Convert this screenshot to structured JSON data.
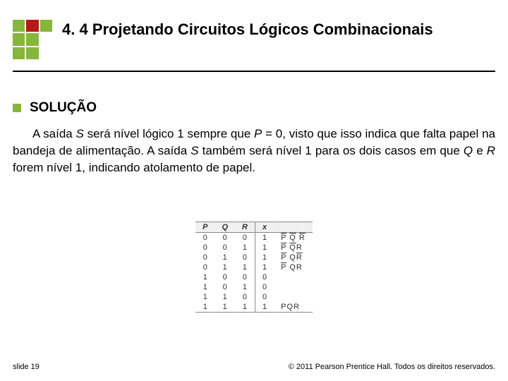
{
  "logo": {
    "cells": [
      "#86b63b",
      "#b51a1a",
      "#86b63b",
      "#86b63b",
      "#86b63b",
      "#ffffff",
      "#86b63b",
      "#86b63b",
      "#ffffff"
    ]
  },
  "title": "4. 4 Projetando Circuitos Lógicos Combinacionais",
  "section": {
    "heading": "SOLUÇÃO"
  },
  "paragraph": {
    "p1a": "A saída ",
    "S1": "S",
    "p1b": " será nível lógico 1 sempre que ",
    "P": "P",
    "p1c": " = 0, visto que isso indica que falta papel na bandeja de alimentação. A saída ",
    "S2": "S",
    "p1d": " também será nível 1 para os dois casos em que ",
    "Q": "Q",
    "p1e": " e ",
    "R": "R",
    "p1f": " forem nível 1, indicando atolamento de papel."
  },
  "table": {
    "headers": [
      "P",
      "Q",
      "R",
      "x",
      ""
    ],
    "rows": [
      {
        "p": "0",
        "q": "0",
        "r": "0",
        "x": "1",
        "expr": [
          {
            "t": "P",
            "bar": true
          },
          {
            "t": " "
          },
          {
            "t": "Q",
            "bar": true
          },
          {
            "t": " "
          },
          {
            "t": "R",
            "bar": true
          }
        ]
      },
      {
        "p": "0",
        "q": "0",
        "r": "1",
        "x": "1",
        "expr": [
          {
            "t": "P",
            "bar": true
          },
          {
            "t": " "
          },
          {
            "t": "Q",
            "bar": true
          },
          {
            "t": "R"
          }
        ]
      },
      {
        "p": "0",
        "q": "1",
        "r": "0",
        "x": "1",
        "expr": [
          {
            "t": "P",
            "bar": true
          },
          {
            "t": " Q"
          },
          {
            "t": "R",
            "bar": true
          }
        ]
      },
      {
        "p": "0",
        "q": "1",
        "r": "1",
        "x": "1",
        "expr": [
          {
            "t": "P",
            "bar": true
          },
          {
            "t": " QR"
          }
        ]
      },
      {
        "p": "1",
        "q": "0",
        "r": "0",
        "x": "0",
        "expr": []
      },
      {
        "p": "1",
        "q": "0",
        "r": "1",
        "x": "0",
        "expr": []
      },
      {
        "p": "1",
        "q": "1",
        "r": "0",
        "x": "0",
        "expr": []
      },
      {
        "p": "1",
        "q": "1",
        "r": "1",
        "x": "1",
        "expr": [
          {
            "t": "PQR"
          }
        ]
      }
    ]
  },
  "footer": {
    "slide": "slide 19",
    "copyright": "© 2011 Pearson Prentice Hall. Todos os direitos reservados."
  }
}
